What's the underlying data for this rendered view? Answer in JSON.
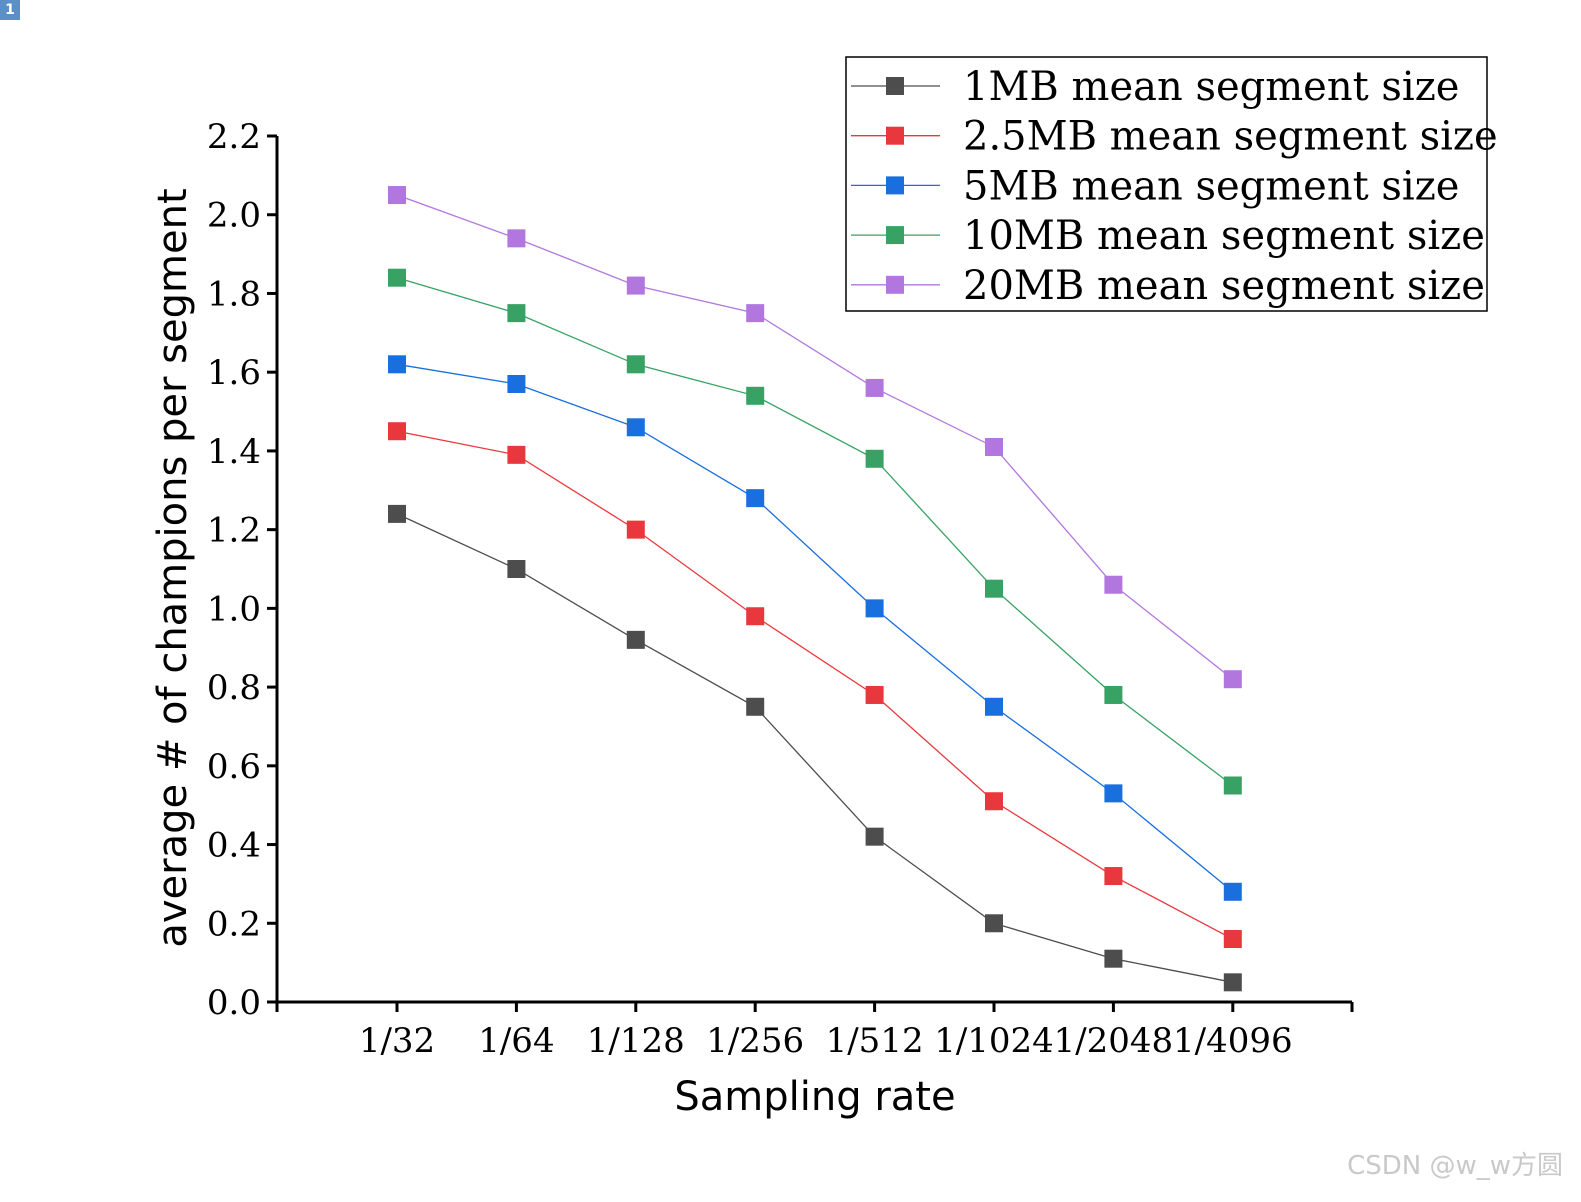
{
  "page_badge": "1",
  "watermark": "CSDN @w_w方圆",
  "chart_data": {
    "type": "line",
    "title": "",
    "xlabel": "Sampling rate",
    "ylabel": "average # of champions per segment",
    "categories": [
      "1/32",
      "1/64",
      "1/128",
      "1/256",
      "1/512",
      "1/1024",
      "1/2048",
      "1/4096"
    ],
    "ylim": [
      0.0,
      2.2
    ],
    "yticks": [
      "0.0",
      "0.2",
      "0.4",
      "0.6",
      "0.8",
      "1.0",
      "1.2",
      "1.4",
      "1.6",
      "1.8",
      "2.0",
      "2.2"
    ],
    "grid": false,
    "legend_position": "top-right",
    "marker": "square",
    "series": [
      {
        "name": "1MB mean segment size",
        "color": "#4d4d4d",
        "values": [
          1.24,
          1.1,
          0.92,
          0.75,
          0.42,
          0.2,
          0.11,
          0.05
        ]
      },
      {
        "name": "2.5MB mean segment size",
        "color": "#e8383d",
        "values": [
          1.45,
          1.39,
          1.2,
          0.98,
          0.78,
          0.51,
          0.32,
          0.16
        ]
      },
      {
        "name": "5MB mean segment size",
        "color": "#1a6fdf",
        "values": [
          1.62,
          1.57,
          1.46,
          1.28,
          1.0,
          0.75,
          0.53,
          0.28
        ]
      },
      {
        "name": "10MB mean segment size",
        "color": "#37a264",
        "values": [
          1.84,
          1.75,
          1.62,
          1.54,
          1.38,
          1.05,
          0.78,
          0.55
        ]
      },
      {
        "name": "20MB mean segment size",
        "color": "#b177de",
        "values": [
          2.05,
          1.94,
          1.82,
          1.75,
          1.56,
          1.41,
          1.06,
          0.82
        ]
      }
    ]
  }
}
